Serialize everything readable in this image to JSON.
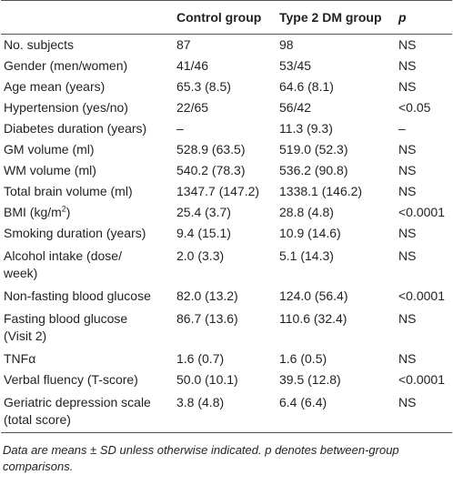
{
  "table": {
    "header": [
      "Control group",
      "Type 2 DM group",
      "p"
    ],
    "rows": [
      [
        "No. subjects",
        "87",
        "98",
        "NS"
      ],
      [
        "Gender (men/women)",
        "41/46",
        "53/45",
        "NS"
      ],
      [
        "Age mean (years)",
        "65.3 (8.5)",
        "64.6 (8.1)",
        "NS"
      ],
      [
        "Hypertension (yes/no)",
        "22/65",
        "56/42",
        "<0.05"
      ],
      [
        "Diabetes duration (years)",
        "–",
        "11.3 (9.3)",
        "–"
      ],
      [
        "GM volume (ml)",
        "528.9 (63.5)",
        "519.0 (52.3)",
        "NS"
      ],
      [
        "WM volume (ml)",
        "540.2 (78.3)",
        "536.2 (90.8)",
        "NS"
      ],
      [
        "Total brain volume (ml)",
        "1347.7 (147.2)",
        "1338.1 (146.2)",
        "NS"
      ],
      [
        {
          "text": "BMI (kg/m",
          "sup": "2",
          "tail": ")"
        },
        "25.4 (3.7)",
        "28.8 (4.8)",
        "<0.0001"
      ],
      [
        "Smoking duration (years)",
        "9.4 (15.1)",
        "10.9 (14.6)",
        "NS"
      ],
      [
        [
          "Alcohol intake (dose/",
          "week)"
        ],
        "2.0 (3.3)",
        "5.1 (14.3)",
        "NS"
      ],
      [
        "Non-fasting blood glucose",
        "82.0 (13.2)",
        "124.0 (56.4)",
        "<0.0001"
      ],
      [
        [
          "Fasting blood glucose",
          "(Visit 2)"
        ],
        "86.7 (13.6)",
        "110.6 (32.4)",
        "NS"
      ],
      [
        "TNFα",
        "1.6 (0.7)",
        "1.6 (0.5)",
        "NS"
      ],
      [
        "Verbal fluency (T-score)",
        "50.0 (10.1)",
        "39.5 (12.8)",
        "<0.0001"
      ],
      [
        [
          "Geriatric depression scale",
          "(total score)"
        ],
        "3.8 (4.8)",
        "6.4 (6.4)",
        "NS"
      ]
    ],
    "footnote": "Data are means ± SD unless otherwise indicated. p denotes between-group comparisons."
  }
}
